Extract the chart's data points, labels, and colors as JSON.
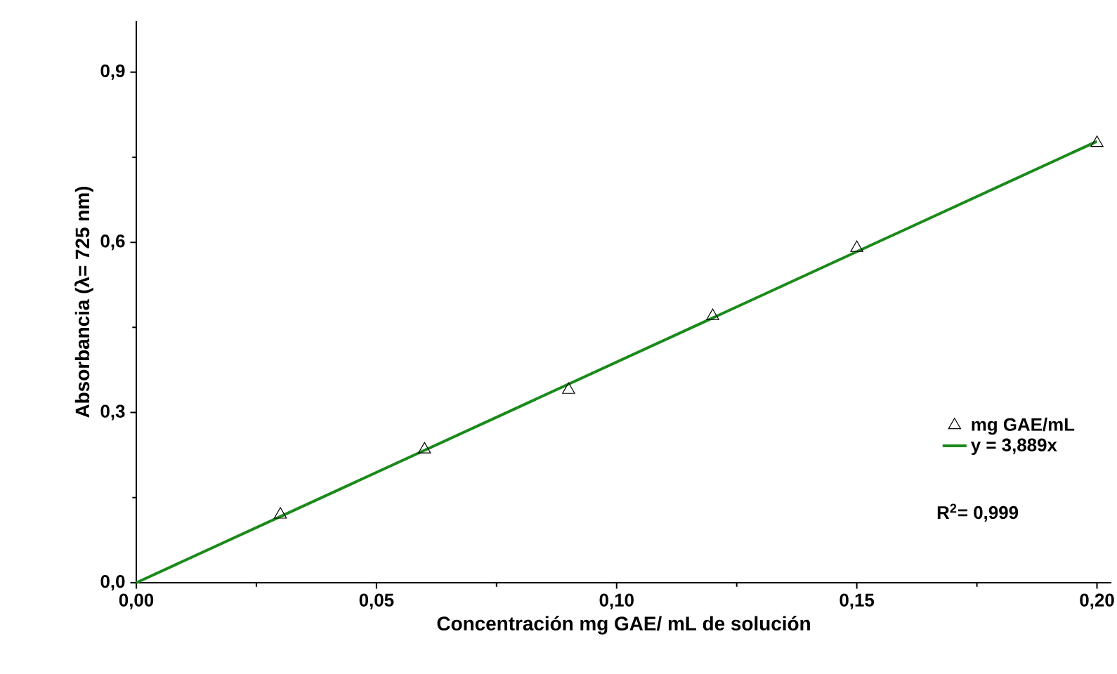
{
  "chart_data": {
    "type": "scatter",
    "xlabel": "Concentración mg GAE/ mL de solución",
    "ylabel": "Absorbancia (λ= 725 nm)",
    "x": [
      0.03,
      0.06,
      0.09,
      0.12,
      0.15,
      0.2
    ],
    "series": [
      {
        "name": "mg GAE/mL",
        "color": "#000000",
        "marker": "triangle",
        "values": [
          0.12,
          0.235,
          0.34,
          0.47,
          0.59,
          0.775
        ]
      },
      {
        "name": "y = 3,889x",
        "type": "line",
        "color": "#1a8a1a",
        "x": [
          0,
          0.2
        ],
        "values": [
          0,
          0.778
        ],
        "marker": "none",
        "line_style": "solid"
      }
    ],
    "annotations": [
      "R$^{2}$= 0,999"
    ],
    "xlim": [
      0,
      0.203
    ],
    "ylim": [
      0,
      0.99
    ],
    "xticks": [
      {
        "value": 0,
        "label": "0,00"
      },
      {
        "value": 0.05,
        "label": "0,05"
      },
      {
        "value": 0.1,
        "label": "0,10"
      },
      {
        "value": 0.15,
        "label": "0,15"
      },
      {
        "value": 0.2,
        "label": "0,20"
      }
    ],
    "yticks": [
      {
        "value": 0,
        "label": "0,0"
      },
      {
        "value": 0.3,
        "label": "0,3"
      },
      {
        "value": 0.6,
        "label": "0,6"
      },
      {
        "value": 0.9,
        "label": "0,9"
      }
    ],
    "grid": false,
    "legend": "bottom right"
  }
}
